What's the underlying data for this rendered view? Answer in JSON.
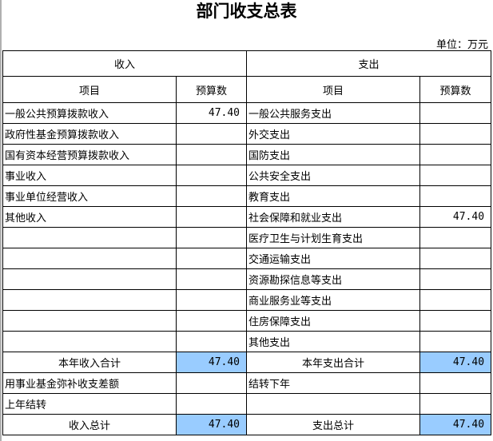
{
  "title": "部门收支总表",
  "unit": "单位：万元",
  "highlight_color": "#99ccff",
  "header": {
    "income": "收入",
    "expense": "支出",
    "item": "项目",
    "budget": "预算数"
  },
  "rows": [
    {
      "in_item": "一般公共预算拨款收入",
      "in_val": "47.40",
      "ex_item": "一般公共服务支出",
      "ex_val": ""
    },
    {
      "in_item": "政府性基金预算拨款收入",
      "in_val": "",
      "ex_item": "外交支出",
      "ex_val": ""
    },
    {
      "in_item": "国有资本经营预算拨款收入",
      "in_val": "",
      "ex_item": "国防支出",
      "ex_val": ""
    },
    {
      "in_item": "事业收入",
      "in_val": "",
      "ex_item": "公共安全支出",
      "ex_val": ""
    },
    {
      "in_item": "事业单位经营收入",
      "in_val": "",
      "ex_item": "教育支出",
      "ex_val": ""
    },
    {
      "in_item": "其他收入",
      "in_val": "",
      "ex_item": "社会保障和就业支出",
      "ex_val": "47.40"
    },
    {
      "in_item": "",
      "in_val": "",
      "ex_item": "医疗卫生与计划生育支出",
      "ex_val": ""
    },
    {
      "in_item": "",
      "in_val": "",
      "ex_item": "交通运输支出",
      "ex_val": ""
    },
    {
      "in_item": "",
      "in_val": "",
      "ex_item": "资源勘探信息等支出",
      "ex_val": ""
    },
    {
      "in_item": "",
      "in_val": "",
      "ex_item": "商业服务业等支出",
      "ex_val": ""
    },
    {
      "in_item": "",
      "in_val": "",
      "ex_item": "住房保障支出",
      "ex_val": ""
    },
    {
      "in_item": "",
      "in_val": "",
      "ex_item": "其他支出",
      "ex_val": ""
    }
  ],
  "subtotal": {
    "in_label": "本年收入合计",
    "in_val": "47.40",
    "ex_label": "本年支出合计",
    "ex_val": "47.40"
  },
  "extra": [
    {
      "in_item": "用事业基金弥补收支差额",
      "in_val": "",
      "ex_item": "结转下年",
      "ex_val": ""
    },
    {
      "in_item": "上年结转",
      "in_val": "",
      "ex_item": "",
      "ex_val": ""
    }
  ],
  "total": {
    "in_label": "收入总计",
    "in_val": "47.40",
    "ex_label": "支出总计",
    "ex_val": "47.40"
  }
}
